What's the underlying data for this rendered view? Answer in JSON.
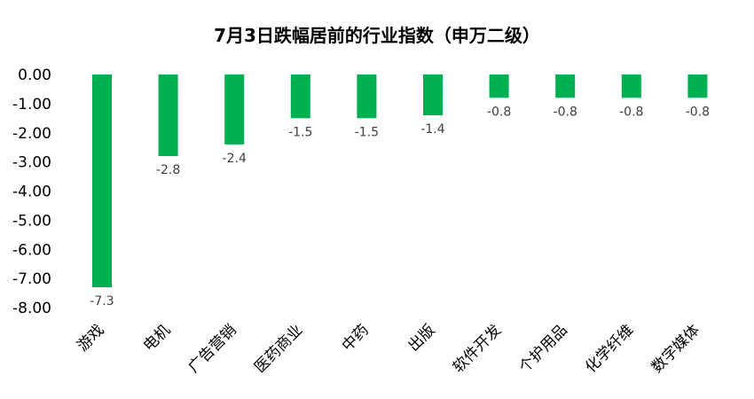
{
  "chart_data": {
    "type": "bar",
    "title": "7月3日跌幅居前的行业指数（申万二级）",
    "xlabel": "",
    "ylabel": "",
    "categories": [
      "游戏",
      "电机",
      "广告营销",
      "医药商业",
      "中药",
      "出版",
      "软件开发",
      "个护用品",
      "化学纤维",
      "数字媒体"
    ],
    "values": [
      -7.3,
      -2.8,
      -2.4,
      -1.5,
      -1.5,
      -1.4,
      -0.8,
      -0.8,
      -0.8,
      -0.8
    ],
    "data_labels": [
      "-7.3",
      "-2.8",
      "-2.4",
      "-1.5",
      "-1.5",
      "-1.4",
      "-0.8",
      "-0.8",
      "-0.8",
      "-0.8"
    ],
    "yticks": [
      "0.00",
      "-1.00",
      "-2.00",
      "-3.00",
      "-4.00",
      "-5.00",
      "-6.00",
      "-7.00",
      "-8.00"
    ],
    "ylim": [
      -8,
      0
    ],
    "bar_color": "#00B050",
    "grid": false,
    "legend": "none"
  }
}
